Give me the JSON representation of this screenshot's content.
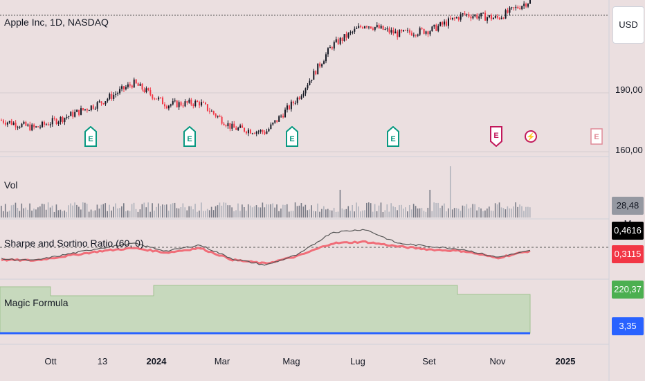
{
  "header": {
    "symbol_title": "Apple Inc, 1D, NASDAQ",
    "currency_button": "USD"
  },
  "price_axis": {
    "labels": [
      "190,00",
      "160,00"
    ]
  },
  "panes": {
    "volume": {
      "title": "Vol",
      "value_tag": "28,48 M",
      "tag_color": "#787b86"
    },
    "sharpe": {
      "title": "Sharpe and Sortino Ratio (60, 0)",
      "tag_top": "0,4616",
      "tag_top_color": "#000000",
      "tag_bottom": "0,3115",
      "tag_bottom_color": "#f23645"
    },
    "magic": {
      "title": "Magic Formula",
      "tag_top": "220,37",
      "tag_top_color": "#4caf50",
      "tag_bottom": "3,35",
      "tag_bottom_color": "#2962ff"
    }
  },
  "time_axis": {
    "labels": [
      {
        "text": "Ott",
        "bold": false
      },
      {
        "text": "13",
        "bold": false
      },
      {
        "text": "2024",
        "bold": true
      },
      {
        "text": "Mar",
        "bold": false
      },
      {
        "text": "Mag",
        "bold": false
      },
      {
        "text": "Lug",
        "bold": false
      },
      {
        "text": "Set",
        "bold": false
      },
      {
        "text": "Nov",
        "bold": false
      },
      {
        "text": "2025",
        "bold": true
      }
    ]
  },
  "earnings_markers": [
    {
      "glyph": "E",
      "style": "past"
    },
    {
      "glyph": "E",
      "style": "past"
    },
    {
      "glyph": "E",
      "style": "past"
    },
    {
      "glyph": "E",
      "style": "past"
    },
    {
      "glyph": "E",
      "style": "next"
    },
    {
      "glyph": "⚡",
      "style": "split"
    },
    {
      "glyph": "E",
      "style": "future"
    }
  ],
  "colors": {
    "up": "#131722",
    "down": "#f23645",
    "earnings_green": "#089981",
    "volume": "#787b86",
    "sharpe_line": "#555555",
    "sortino_line": "#f06e79",
    "magic_fill": "#c7d9bd",
    "magic_line": "#2962ff"
  },
  "chart_data": {
    "type": "line",
    "title": "Apple Inc, 1D, NASDAQ",
    "price_axis_ticks": [
      190,
      160
    ],
    "price_points": [
      {
        "date": "2023-09",
        "close": 176
      },
      {
        "date": "2023-10",
        "close": 172
      },
      {
        "date": "2023-10-13",
        "close": 178
      },
      {
        "date": "2023-11",
        "close": 185
      },
      {
        "date": "2023-12",
        "close": 195
      },
      {
        "date": "2024-01",
        "close": 184
      },
      {
        "date": "2024-02",
        "close": 185
      },
      {
        "date": "2024-03",
        "close": 172
      },
      {
        "date": "2024-04",
        "close": 170
      },
      {
        "date": "2024-05",
        "close": 188
      },
      {
        "date": "2024-06",
        "close": 214
      },
      {
        "date": "2024-07",
        "close": 225
      },
      {
        "date": "2024-08",
        "close": 220
      },
      {
        "date": "2024-09",
        "close": 222
      },
      {
        "date": "2024-10",
        "close": 230
      },
      {
        "date": "2024-11",
        "close": 228
      },
      {
        "date": "2024-11-end",
        "close": 237
      }
    ],
    "sharpe_points": [
      0.05,
      0.0,
      0.2,
      0.4,
      0.55,
      0.3,
      0.5,
      0.05,
      -0.15,
      0.2,
      0.9,
      1.0,
      0.55,
      0.45,
      0.35,
      0.1,
      0.31
    ],
    "sortino_points": [
      0.02,
      0.0,
      0.15,
      0.3,
      0.4,
      0.25,
      0.4,
      0.02,
      -0.1,
      0.15,
      0.55,
      0.6,
      0.45,
      0.35,
      0.3,
      0.08,
      0.31
    ]
  }
}
